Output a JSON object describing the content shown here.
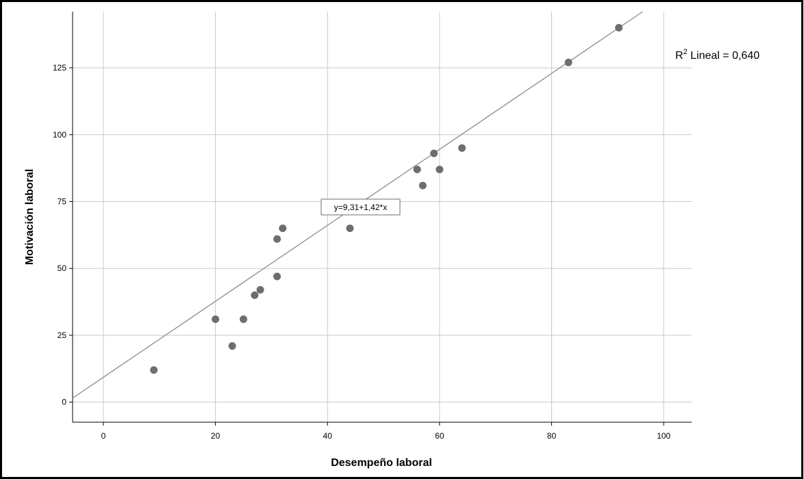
{
  "chart_data": {
    "type": "scatter",
    "title": "",
    "xlabel": "Desempeño laboral",
    "ylabel": "Motivación laboral",
    "xlim": [
      -5.5,
      105
    ],
    "ylim": [
      -7.5,
      146
    ],
    "x_ticks": [
      0,
      20,
      40,
      60,
      80,
      100
    ],
    "y_ticks": [
      0,
      25,
      50,
      75,
      100,
      125
    ],
    "grid": true,
    "points": [
      {
        "x": 9,
        "y": 12
      },
      {
        "x": 20,
        "y": 31
      },
      {
        "x": 23,
        "y": 21
      },
      {
        "x": 25,
        "y": 31
      },
      {
        "x": 27,
        "y": 40
      },
      {
        "x": 28,
        "y": 42
      },
      {
        "x": 31,
        "y": 47
      },
      {
        "x": 31,
        "y": 61
      },
      {
        "x": 32,
        "y": 65
      },
      {
        "x": 44,
        "y": 65
      },
      {
        "x": 56,
        "y": 87
      },
      {
        "x": 57,
        "y": 81
      },
      {
        "x": 59,
        "y": 93
      },
      {
        "x": 60,
        "y": 87
      },
      {
        "x": 64,
        "y": 95
      },
      {
        "x": 83,
        "y": 127
      },
      {
        "x": 92,
        "y": 140
      }
    ],
    "fit_line": {
      "intercept": 9.31,
      "slope": 1.42,
      "equation_label": "y=9,31+1,42*x",
      "r2_label_main": "R",
      "r2_label_sup": "2",
      "r2_label_rest": " Lineal = 0,640"
    },
    "colors": {
      "points": "#6e6e6e",
      "fit_line": "#8c8c8c",
      "grid": "#c8c8c8",
      "frame": "#000000"
    }
  }
}
